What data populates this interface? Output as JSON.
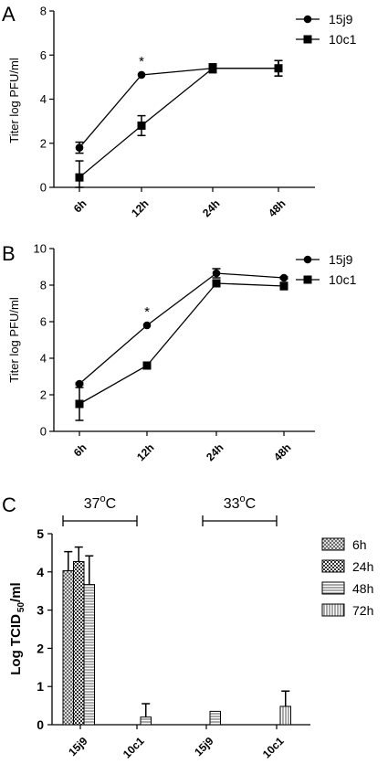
{
  "chart_data": [
    {
      "type": "line",
      "panel_label": "A",
      "ylabel": "Titer log PFU/ml",
      "xlabel": "",
      "categories": [
        "6h",
        "12h",
        "24h",
        "48h"
      ],
      "ylim": [
        0,
        8
      ],
      "yticks": [
        "0",
        "2",
        "4",
        "6",
        "8"
      ],
      "legend_position": "top-right",
      "series": [
        {
          "name": "15j9",
          "marker": "circle",
          "values": [
            1.8,
            5.1,
            5.4,
            5.4
          ],
          "errors": [
            0.25,
            0.0,
            0.2,
            0.35
          ]
        },
        {
          "name": "10c1",
          "marker": "square",
          "values": [
            0.45,
            2.8,
            5.4,
            5.4
          ],
          "errors": [
            0.75,
            0.45,
            0.2,
            0.35
          ]
        }
      ],
      "annotations": [
        {
          "text": "*",
          "category": "12h"
        }
      ]
    },
    {
      "type": "line",
      "panel_label": "B",
      "ylabel": "Titer log PFU/ml",
      "xlabel": "",
      "categories": [
        "6h",
        "12h",
        "24h",
        "48h"
      ],
      "ylim": [
        0,
        10
      ],
      "yticks": [
        "0",
        "2",
        "4",
        "6",
        "8",
        "10"
      ],
      "legend_position": "top-right",
      "series": [
        {
          "name": "15j9",
          "marker": "circle",
          "values": [
            2.6,
            5.8,
            8.65,
            8.4
          ],
          "errors": [
            0.05,
            0.0,
            0.25,
            0.05
          ]
        },
        {
          "name": "10c1",
          "marker": "square",
          "values": [
            1.5,
            3.6,
            8.1,
            7.95
          ],
          "errors": [
            0.9,
            0.1,
            0.1,
            0.2
          ]
        }
      ],
      "annotations": [
        {
          "text": "*",
          "category": "12h"
        }
      ]
    },
    {
      "type": "bar",
      "panel_label": "C",
      "ylabel": "Log TCID 50/ml",
      "ylabel_parts": {
        "main": "Log TCID",
        "subscript": "50",
        "suffix": "/ml"
      },
      "xlabel": "",
      "categories": [
        "15j9",
        "10c1",
        "15j9",
        "10c1"
      ],
      "ylim": [
        0,
        5
      ],
      "yticks": [
        "0",
        "1",
        "2",
        "3",
        "4",
        "5"
      ],
      "legend_position": "right",
      "group_labels": [
        {
          "base": "37",
          "sup": "o",
          "unit": "C"
        },
        {
          "base": "33",
          "sup": "o",
          "unit": "C"
        }
      ],
      "series": [
        {
          "name": "6h",
          "pattern": "crosshatch",
          "values": [
            4.03,
            0,
            0,
            0
          ],
          "errors": [
            0.5,
            0,
            0,
            0
          ]
        },
        {
          "name": "24h",
          "pattern": "checker",
          "values": [
            4.27,
            0,
            0,
            0
          ],
          "errors": [
            0.38,
            0,
            0,
            0
          ]
        },
        {
          "name": "48h",
          "pattern": "horizontal",
          "values": [
            3.67,
            0.2,
            0.35,
            0
          ],
          "errors": [
            0.75,
            0.35,
            0,
            0
          ]
        },
        {
          "name": "72h",
          "pattern": "vertical",
          "values": [
            0,
            0,
            0,
            0.48
          ],
          "errors": [
            0,
            0,
            0,
            0.4
          ]
        }
      ]
    }
  ]
}
